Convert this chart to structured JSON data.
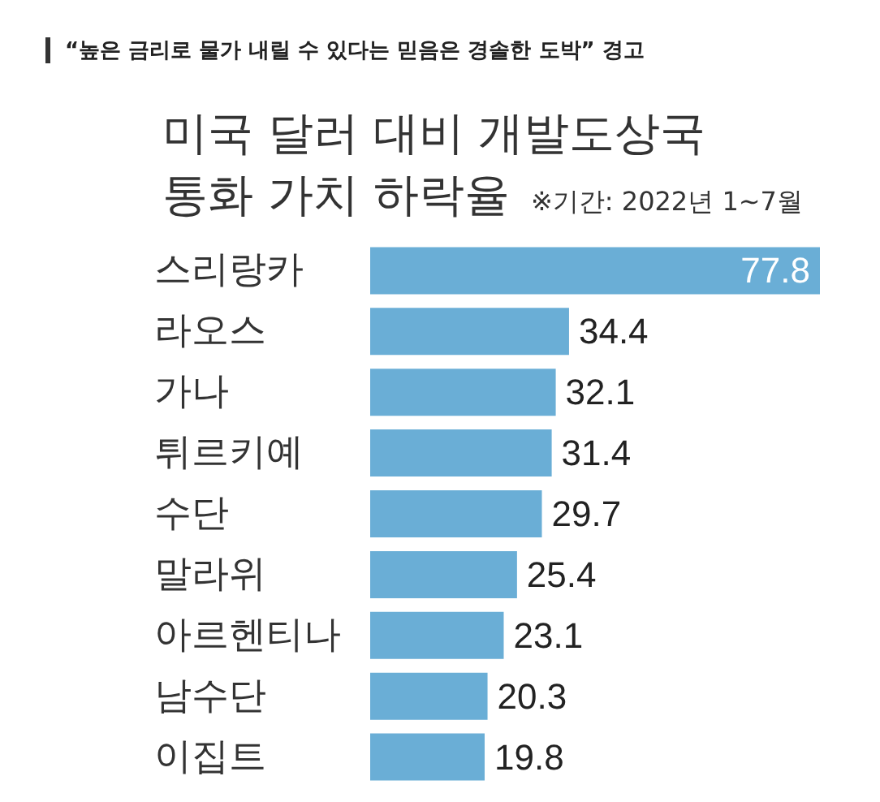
{
  "chart_data": {
    "type": "bar",
    "orientation": "horizontal",
    "title": "미국 달러 대비 개발도상국\n통화 가치 하락율",
    "subtitle": "※기간: 2022년 1~7월",
    "annotations": [
      "“높은 금리로 물가 내릴 수 있다는 믿음은 경솔한 도박” 경고"
    ],
    "categories": [
      "스리랑카",
      "라오스",
      "가나",
      "튀르키예",
      "수단",
      "말라위",
      "아르헨티나",
      "남수단",
      "이집트"
    ],
    "values": [
      77.8,
      34.4,
      32.1,
      31.4,
      29.7,
      25.4,
      23.1,
      20.3,
      19.8
    ],
    "color": "#6aaed6",
    "data_labels": true
  }
}
